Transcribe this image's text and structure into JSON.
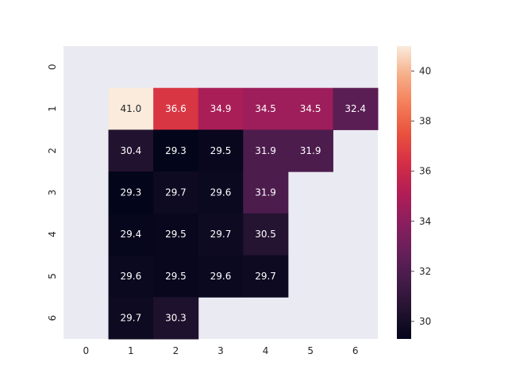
{
  "chart_data": {
    "type": "heatmap",
    "title": "",
    "xlabel": "",
    "ylabel": "",
    "x_categories": [
      "0",
      "1",
      "2",
      "3",
      "4",
      "5",
      "6"
    ],
    "y_categories": [
      "0",
      "1",
      "2",
      "3",
      "4",
      "5",
      "6"
    ],
    "values": [
      [
        null,
        null,
        null,
        null,
        null,
        null,
        null
      ],
      [
        null,
        41.0,
        36.6,
        34.9,
        34.5,
        34.5,
        32.4
      ],
      [
        null,
        30.4,
        29.3,
        29.5,
        31.9,
        31.9,
        null
      ],
      [
        null,
        29.3,
        29.7,
        29.6,
        31.9,
        null,
        null
      ],
      [
        null,
        29.4,
        29.5,
        29.7,
        30.5,
        null,
        null
      ],
      [
        null,
        29.6,
        29.5,
        29.6,
        29.7,
        null,
        null
      ],
      [
        null,
        29.7,
        30.3,
        null,
        null,
        null,
        null
      ]
    ],
    "value_format": "0.0",
    "colorscale": "rocket",
    "vmin": 29.3,
    "vmax": 41.0,
    "colorbar_ticks": [
      30,
      32,
      34,
      36,
      38,
      40
    ],
    "missing_color": "#eaeaf2",
    "grid": false,
    "colorbar_position": "right"
  }
}
